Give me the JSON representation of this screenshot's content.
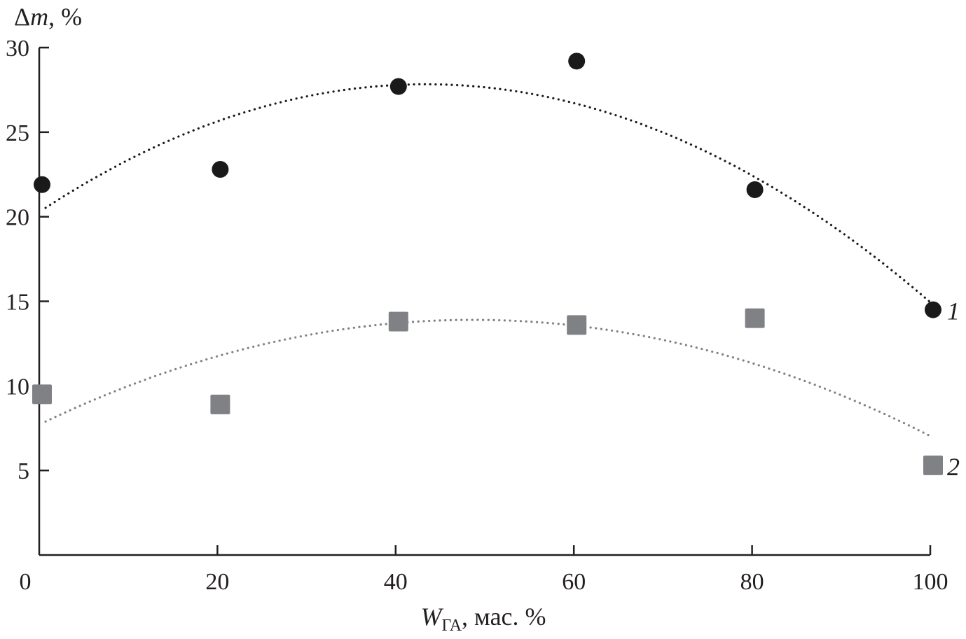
{
  "chart_data": {
    "type": "scatter",
    "title": "",
    "ylabel": "Δm, %",
    "xlabel": {
      "main": "W",
      "subscript": "ГА",
      "rest": ", мас. %"
    },
    "xlim": [
      0,
      100
    ],
    "ylim": [
      0,
      30
    ],
    "xticks": [
      "0",
      "20",
      "40",
      "60",
      "80",
      "100"
    ],
    "yticks": [
      "5",
      "10",
      "15",
      "20",
      "25",
      "30"
    ],
    "grid": false,
    "series": [
      {
        "name": "1",
        "marker": "circle",
        "color": "#1a1a1a",
        "trendline": "quadratic, dotted",
        "x": [
          0,
          20,
          40,
          60,
          80,
          100
        ],
        "y": [
          21.9,
          22.8,
          27.7,
          29.2,
          21.6,
          14.5
        ]
      },
      {
        "name": "2",
        "marker": "square",
        "color": "#808185",
        "trendline": "quadratic, dotted",
        "x": [
          0,
          20,
          40,
          60,
          80,
          100
        ],
        "y": [
          9.5,
          8.9,
          13.8,
          13.6,
          14.0,
          5.3
        ]
      }
    ]
  }
}
